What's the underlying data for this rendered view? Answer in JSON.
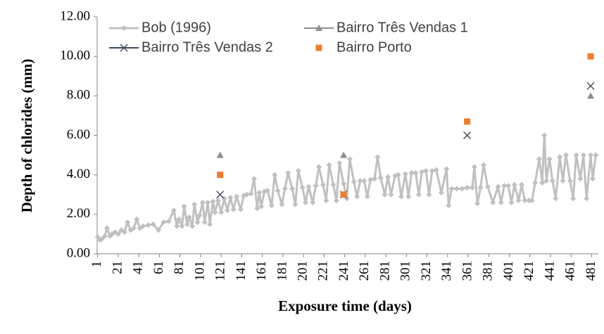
{
  "chart_data": {
    "type": "line",
    "xlabel": "Exposure time (days)",
    "ylabel": "Depth of chlorides (mm)",
    "xlim": [
      0.5,
      487.5
    ],
    "xticks": [
      1,
      21,
      41,
      61,
      81,
      101,
      121,
      141,
      161,
      181,
      201,
      221,
      241,
      261,
      281,
      301,
      321,
      341,
      361,
      381,
      401,
      421,
      441,
      461,
      481
    ],
    "ylim": [
      0,
      12
    ],
    "yticks": [
      {
        "value": 0,
        "label": "0.00"
      },
      {
        "value": 2,
        "label": "2.00"
      },
      {
        "value": 4,
        "label": "4.00"
      },
      {
        "value": 6,
        "label": "6.00"
      },
      {
        "value": 8,
        "label": "8.00"
      },
      {
        "value": 10,
        "label": "10.00"
      },
      {
        "value": 12,
        "label": "12.00"
      }
    ],
    "series": [
      {
        "name": "Bob (1996)",
        "color": "#c0c0c0",
        "marker": "diamond",
        "line": true,
        "x": [
          1,
          3,
          5,
          8,
          10,
          13,
          15,
          18,
          21,
          24,
          27,
          30,
          33,
          36,
          39,
          42,
          45,
          50,
          55,
          60,
          65,
          70,
          75,
          78,
          80,
          83,
          85,
          88,
          90,
          93,
          95,
          98,
          100,
          103,
          105,
          108,
          110,
          113,
          115,
          118,
          121,
          124,
          127,
          130,
          133,
          136,
          140,
          143,
          146,
          150,
          153,
          156,
          158,
          160,
          163,
          166,
          170,
          173,
          176,
          180,
          183,
          186,
          190,
          193,
          196,
          200,
          203,
          206,
          210,
          213,
          216,
          220,
          223,
          226,
          230,
          233,
          236,
          240,
          243,
          246,
          250,
          253,
          256,
          260,
          263,
          266,
          270,
          273,
          276,
          280,
          283,
          286,
          290,
          293,
          296,
          300,
          303,
          306,
          310,
          313,
          316,
          320,
          323,
          326,
          330,
          335,
          340,
          342,
          345,
          350,
          355,
          360,
          365,
          367,
          370,
          373,
          376,
          380,
          385,
          390,
          393,
          396,
          400,
          403,
          406,
          410,
          413,
          416,
          420,
          423,
          426,
          430,
          433,
          435,
          437,
          440,
          443,
          446,
          450,
          453,
          456,
          460,
          463,
          466,
          470,
          473,
          476,
          480,
          482,
          485
        ],
        "values": [
          0.85,
          0.7,
          0.75,
          0.9,
          1.3,
          0.9,
          1.0,
          1.1,
          1.0,
          1.2,
          1.1,
          1.6,
          1.2,
          1.3,
          1.75,
          1.3,
          1.4,
          1.45,
          1.5,
          1.2,
          1.6,
          1.65,
          2.2,
          1.4,
          1.75,
          1.4,
          2.4,
          1.5,
          1.85,
          1.4,
          2.5,
          1.6,
          1.95,
          2.6,
          1.6,
          2.6,
          1.5,
          2.65,
          2.1,
          2.7,
          2.1,
          2.8,
          2.2,
          2.85,
          2.25,
          2.9,
          2.25,
          2.95,
          3.0,
          3.05,
          3.8,
          2.3,
          3.1,
          2.4,
          3.15,
          3.2,
          2.45,
          4.0,
          3.2,
          2.5,
          3.3,
          4.1,
          3.3,
          2.5,
          4.2,
          3.35,
          2.6,
          3.4,
          2.6,
          3.45,
          4.4,
          3.5,
          2.7,
          4.5,
          3.5,
          2.7,
          4.6,
          3.55,
          2.8,
          4.8,
          3.65,
          2.9,
          3.7,
          3.7,
          2.9,
          3.75,
          3.8,
          4.9,
          3.85,
          3.0,
          3.9,
          3.0,
          3.95,
          4.0,
          2.9,
          4.05,
          2.9,
          4.1,
          4.1,
          3.0,
          4.15,
          4.2,
          3.0,
          4.2,
          4.25,
          3.1,
          4.3,
          2.45,
          3.3,
          3.3,
          3.3,
          3.35,
          3.35,
          4.4,
          2.55,
          3.35,
          4.5,
          3.4,
          2.6,
          3.4,
          2.6,
          3.45,
          3.45,
          2.6,
          3.5,
          2.7,
          3.5,
          2.7,
          2.7,
          2.7,
          3.6,
          4.8,
          3.6,
          6.0,
          3.7,
          4.8,
          3.7,
          2.8,
          4.9,
          3.7,
          5.0,
          3.7,
          2.8,
          5.0,
          3.8,
          5.0,
          2.8,
          5.0,
          3.8,
          5.0
        ]
      },
      {
        "name": "Bairro Três Vendas 1",
        "color": "#8c8c8c",
        "marker": "triangle",
        "x": [
          120,
          240,
          480
        ],
        "values": [
          5.0,
          5.0,
          8.0
        ]
      },
      {
        "name": "Bairro Três Vendas 2",
        "color": "#404a5a",
        "marker": "x",
        "x": [
          120,
          240,
          360,
          480
        ],
        "values": [
          3.0,
          3.0,
          6.0,
          8.5
        ]
      },
      {
        "name": "Bairro Porto",
        "color": "#ed7d31",
        "marker": "square",
        "x": [
          120,
          240,
          360,
          480
        ],
        "values": [
          4.0,
          3.0,
          6.7,
          10.0
        ]
      }
    ]
  }
}
